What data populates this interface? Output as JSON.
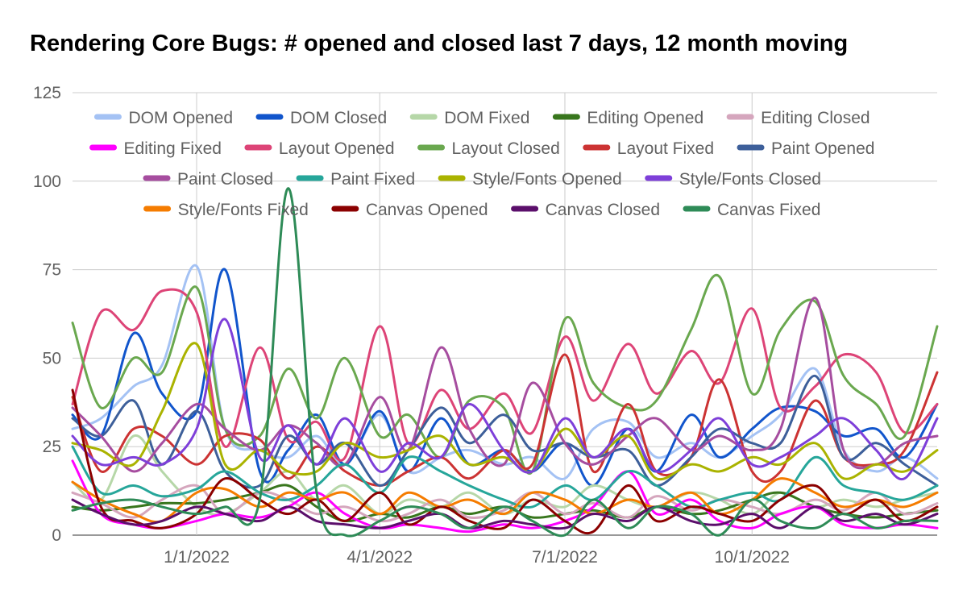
{
  "chart_data": {
    "type": "line",
    "title": "Rendering Core Bugs: # opened and closed last 7 days, 12 month moving",
    "xlabel": "",
    "ylabel": "",
    "ylim": [
      0,
      125
    ],
    "yticks": [
      0,
      25,
      50,
      75,
      100,
      125
    ],
    "xlim": [
      "2021-11-01",
      "2022-12-31"
    ],
    "xticks": [
      "1/1/2022",
      "4/1/2022",
      "7/1/2022",
      "10/1/2022"
    ],
    "grid": true,
    "legend_position": "top",
    "x": [
      "2021-11-01",
      "2021-11-15",
      "2021-12-01",
      "2021-12-15",
      "2022-01-01",
      "2022-01-15",
      "2022-02-01",
      "2022-02-15",
      "2022-03-01",
      "2022-03-15",
      "2022-04-01",
      "2022-04-15",
      "2022-05-01",
      "2022-05-15",
      "2022-06-01",
      "2022-06-15",
      "2022-07-01",
      "2022-07-15",
      "2022-08-01",
      "2022-08-15",
      "2022-09-01",
      "2022-09-15",
      "2022-10-01",
      "2022-10-15",
      "2022-11-01",
      "2022-11-15",
      "2022-12-01",
      "2022-12-15",
      "2022-12-31"
    ],
    "series": [
      {
        "name": "DOM Opened",
        "color": "#a4c2f4",
        "values": [
          30,
          33,
          42,
          48,
          76,
          30,
          24,
          22,
          28,
          20,
          34,
          18,
          22,
          24,
          20,
          22,
          16,
          30,
          32,
          22,
          26,
          22,
          28,
          34,
          47,
          24,
          18,
          22,
          16
        ]
      },
      {
        "name": "DOM Closed",
        "color": "#1155cc",
        "values": [
          34,
          28,
          57,
          40,
          35,
          75,
          18,
          24,
          34,
          20,
          35,
          18,
          33,
          20,
          24,
          18,
          26,
          14,
          30,
          18,
          34,
          22,
          30,
          36,
          35,
          28,
          30,
          22,
          37
        ]
      },
      {
        "name": "DOM Fixed",
        "color": "#b6d7a8",
        "values": [
          15,
          10,
          28,
          18,
          8,
          6,
          12,
          18,
          10,
          14,
          6,
          10,
          8,
          12,
          6,
          10,
          8,
          14,
          10,
          8,
          12,
          10,
          6,
          12,
          8,
          10,
          8,
          10,
          12
        ]
      },
      {
        "name": "Editing Opened",
        "color": "#38761d",
        "values": [
          8,
          7,
          8,
          9,
          9,
          10,
          12,
          14,
          8,
          4,
          6,
          5,
          8,
          6,
          8,
          5,
          6,
          7,
          5,
          8,
          6,
          7,
          10,
          12,
          8,
          6,
          5,
          6,
          7
        ]
      },
      {
        "name": "Editing Closed",
        "color": "#d5a6bd",
        "values": [
          12,
          9,
          5,
          10,
          14,
          6,
          12,
          10,
          6,
          8,
          4,
          6,
          10,
          5,
          7,
          12,
          6,
          9,
          5,
          11,
          7,
          10,
          8,
          6,
          10,
          7,
          12,
          6,
          9
        ]
      },
      {
        "name": "Editing Fixed",
        "color": "#ff00ff",
        "values": [
          21,
          6,
          3,
          2,
          4,
          6,
          5,
          8,
          12,
          6,
          2,
          3,
          2,
          1,
          3,
          2,
          4,
          8,
          18,
          6,
          10,
          4,
          2,
          6,
          8,
          3,
          2,
          3,
          2
        ]
      },
      {
        "name": "Layout Opened",
        "color": "#dd4477",
        "values": [
          37,
          63,
          58,
          69,
          63,
          25,
          53,
          27,
          32,
          22,
          59,
          26,
          41,
          30,
          40,
          29,
          56,
          38,
          54,
          40,
          52,
          43,
          64,
          36,
          42,
          51,
          46,
          29,
          37
        ]
      },
      {
        "name": "Layout Closed",
        "color": "#6aa84f",
        "values": [
          60,
          36,
          50,
          46,
          70,
          30,
          28,
          47,
          33,
          50,
          28,
          34,
          22,
          38,
          36,
          18,
          61,
          43,
          36,
          38,
          58,
          73,
          40,
          58,
          66,
          45,
          37,
          28,
          59
        ]
      },
      {
        "name": "Layout Fixed",
        "color": "#cc3333",
        "values": [
          39,
          18,
          30,
          28,
          20,
          28,
          27,
          16,
          25,
          18,
          14,
          18,
          22,
          16,
          24,
          20,
          51,
          18,
          37,
          18,
          22,
          44,
          18,
          18,
          38,
          22,
          20,
          24,
          46
        ]
      },
      {
        "name": "Paint Opened",
        "color": "#3d5f9a",
        "values": [
          33,
          28,
          38,
          20,
          35,
          18,
          14,
          28,
          20,
          26,
          14,
          24,
          36,
          26,
          34,
          24,
          26,
          22,
          24,
          14,
          22,
          30,
          26,
          26,
          45,
          22,
          26,
          20,
          14
        ]
      },
      {
        "name": "Paint Closed",
        "color": "#a64d9f",
        "values": [
          36,
          28,
          18,
          26,
          37,
          30,
          24,
          31,
          26,
          20,
          39,
          24,
          53,
          30,
          20,
          43,
          26,
          20,
          28,
          33,
          24,
          28,
          24,
          30,
          67,
          24,
          20,
          26,
          28
        ]
      },
      {
        "name": "Paint Fixed",
        "color": "#26a69a",
        "values": [
          25,
          12,
          14,
          11,
          13,
          18,
          12,
          10,
          14,
          20,
          12,
          22,
          18,
          14,
          10,
          8,
          14,
          10,
          18,
          14,
          8,
          10,
          12,
          10,
          22,
          14,
          12,
          10,
          14
        ]
      },
      {
        "name": "Style/Fonts Opened",
        "color": "#aab300",
        "values": [
          26,
          24,
          20,
          35,
          54,
          20,
          24,
          18,
          18,
          26,
          22,
          24,
          28,
          20,
          22,
          18,
          30,
          22,
          28,
          16,
          20,
          18,
          22,
          20,
          26,
          16,
          20,
          18,
          24
        ]
      },
      {
        "name": "Style/Fonts Closed",
        "color": "#7e3fd9",
        "values": [
          28,
          20,
          22,
          20,
          30,
          61,
          22,
          31,
          20,
          33,
          18,
          26,
          22,
          37,
          24,
          18,
          33,
          22,
          30,
          18,
          24,
          33,
          20,
          22,
          28,
          33,
          24,
          16,
          33
        ]
      },
      {
        "name": "Style/Fonts Fixed",
        "color": "#f57c00",
        "values": [
          15,
          10,
          6,
          4,
          12,
          13,
          8,
          12,
          10,
          12,
          6,
          12,
          8,
          10,
          6,
          12,
          10,
          6,
          10,
          8,
          12,
          6,
          10,
          16,
          12,
          8,
          10,
          8,
          12
        ]
      },
      {
        "name": "Canvas Opened",
        "color": "#8b0000",
        "values": [
          41,
          8,
          4,
          2,
          6,
          16,
          10,
          6,
          10,
          4,
          12,
          3,
          8,
          4,
          2,
          10,
          4,
          1,
          14,
          4,
          8,
          6,
          4,
          10,
          14,
          6,
          10,
          4,
          8
        ]
      },
      {
        "name": "Canvas Closed",
        "color": "#5b0f6b",
        "values": [
          10,
          6,
          3,
          4,
          8,
          6,
          4,
          8,
          4,
          3,
          2,
          4,
          6,
          2,
          4,
          3,
          2,
          6,
          4,
          8,
          4,
          3,
          6,
          2,
          8,
          4,
          6,
          3,
          6
        ]
      },
      {
        "name": "Canvas Fixed",
        "color": "#2e8b57",
        "values": [
          7,
          9,
          10,
          8,
          6,
          8,
          10,
          98,
          12,
          0,
          4,
          8,
          6,
          2,
          8,
          4,
          0,
          10,
          2,
          8,
          6,
          0,
          10,
          4,
          2,
          6,
          2,
          4,
          4
        ]
      }
    ]
  }
}
